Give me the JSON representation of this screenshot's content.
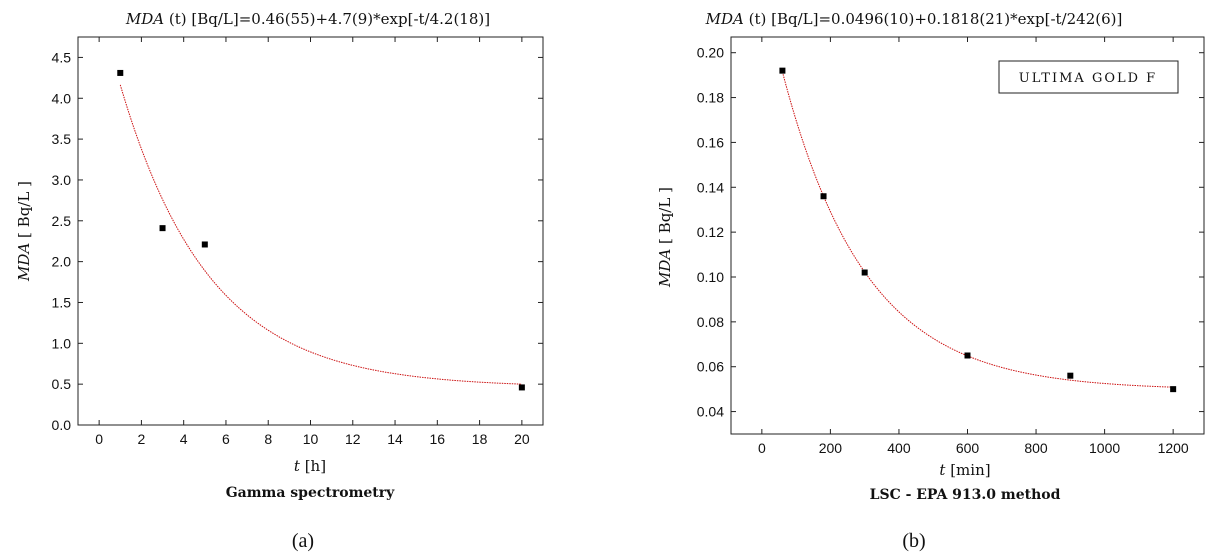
{
  "chart_data": [
    {
      "type": "scatter",
      "panel": "(a)",
      "title_italic": "MDA",
      "title_rest": " (t) [Bq/L]=0.46(55)+4.7(9)*exp[-t/4.2(18)]",
      "xlabel_italic": "t",
      "xlabel_rest": " [h]",
      "ylabel_italic": "MDA",
      "ylabel_rest": " [ Bq/L ]",
      "caption": "Gamma spectrometry",
      "xlim": [
        -1.0,
        21.0
      ],
      "ylim": [
        0.0,
        4.75
      ],
      "xticks": [
        0,
        2,
        4,
        6,
        8,
        10,
        12,
        14,
        16,
        18,
        20
      ],
      "xtick_labels": [
        "0",
        "2",
        "4",
        "6",
        "8",
        "10",
        "12",
        "14",
        "16",
        "18",
        "20"
      ],
      "yticks": [
        0.0,
        0.5,
        1.0,
        1.5,
        2.0,
        2.5,
        3.0,
        3.5,
        4.0,
        4.5
      ],
      "ytick_labels": [
        "0.0",
        "0.5",
        "1.0",
        "1.5",
        "2.0",
        "2.5",
        "3.0",
        "3.5",
        "4.0",
        "4.5"
      ],
      "series": [
        {
          "x": [
            1,
            3,
            5,
            20
          ],
          "y": [
            4.31,
            2.41,
            2.21,
            0.46
          ],
          "marker": "square",
          "color": "#000000"
        }
      ],
      "fit": {
        "a": 0.46,
        "b": 4.7,
        "tau": 4.2,
        "x_range": [
          1,
          20
        ],
        "color": "#cc1111"
      }
    },
    {
      "type": "scatter",
      "panel": "(b)",
      "title_italic": "MDA",
      "title_rest": " (t) [Bq/L]=0.0496(10)+0.1818(21)*exp[-t/242(6)]",
      "xlabel_italic": "t",
      "xlabel_rest": " [min]",
      "ylabel_italic": "MDA",
      "ylabel_rest": " [ Bq/L ]",
      "caption": "LSC - EPA 913.0 method",
      "legend_box": "ULTIMA GOLD F",
      "legend_position": "top-right",
      "xlim": [
        -90,
        1290
      ],
      "ylim": [
        0.03,
        0.207
      ],
      "xticks": [
        0,
        200,
        400,
        600,
        800,
        1000,
        1200
      ],
      "xtick_labels": [
        "0",
        "200",
        "400",
        "600",
        "800",
        "1000",
        "1200"
      ],
      "yticks": [
        0.04,
        0.06,
        0.08,
        0.1,
        0.12,
        0.14,
        0.16,
        0.18,
        0.2
      ],
      "ytick_labels": [
        "0.04",
        "0.06",
        "0.08",
        "0.10",
        "0.12",
        "0.14",
        "0.16",
        "0.18",
        "0.20"
      ],
      "series": [
        {
          "x": [
            60,
            180,
            300,
            600,
            900,
            1200
          ],
          "y": [
            0.192,
            0.136,
            0.102,
            0.065,
            0.056,
            0.05
          ],
          "marker": "square",
          "color": "#000000"
        }
      ],
      "fit": {
        "a": 0.0496,
        "b": 0.1818,
        "tau": 242,
        "x_range": [
          60,
          1200
        ],
        "color": "#cc1111"
      }
    }
  ]
}
